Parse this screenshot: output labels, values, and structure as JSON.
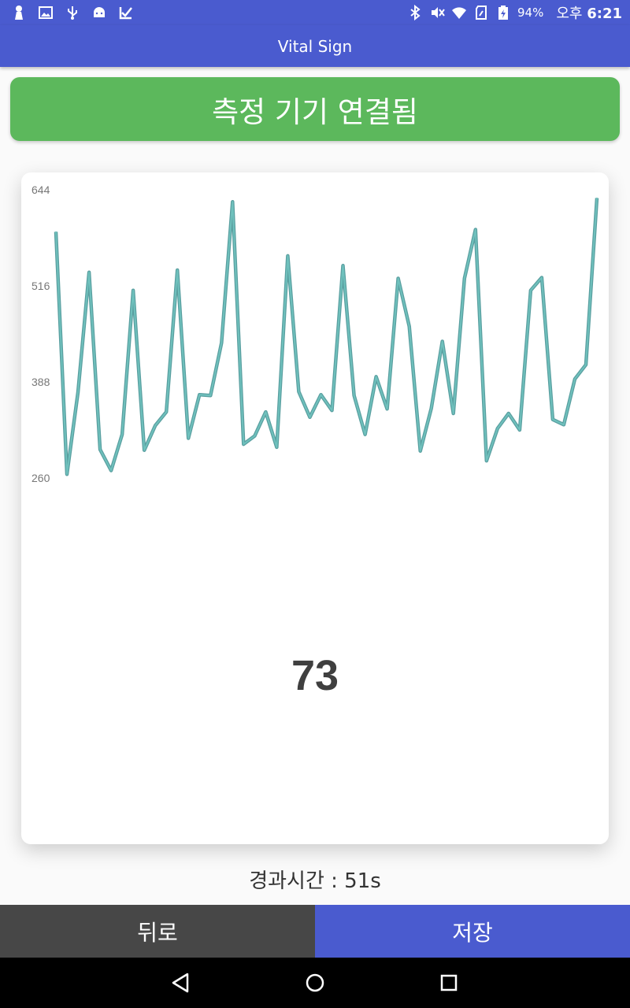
{
  "status_bar": {
    "battery": "94%",
    "time_prefix": "오후",
    "time": "6:21",
    "icons_left": [
      "user-icon",
      "image-icon",
      "usb-icon",
      "android-icon",
      "app-check-icon"
    ],
    "icons_right": [
      "bluetooth-icon",
      "mute-icon",
      "wifi-icon",
      "sim-icon",
      "battery-icon"
    ]
  },
  "app_bar": {
    "title": "Vital Sign"
  },
  "banner": {
    "label": "측정 기기 연결됨",
    "color": "#5cb85c"
  },
  "chart_data": {
    "type": "line",
    "y_ticks": [
      "644",
      "516",
      "388",
      "260"
    ],
    "ylim": [
      260,
      644
    ],
    "line_color": "#6fc1bd",
    "values": [
      588,
      265,
      374,
      534,
      298,
      270,
      318,
      510,
      297,
      330,
      348,
      537,
      313,
      371,
      370,
      440,
      628,
      305,
      316,
      348,
      301,
      556,
      375,
      341,
      371,
      350,
      543,
      370,
      318,
      395,
      352,
      526,
      462,
      296,
      353,
      442,
      346,
      526,
      591,
      283,
      326,
      346,
      324,
      510,
      527,
      338,
      331,
      392,
      411,
      633
    ]
  },
  "reading": {
    "value": "73"
  },
  "elapsed": {
    "label": "경과시간 : 51s"
  },
  "buttons": {
    "back": "뒤로",
    "save": "저장"
  },
  "colors": {
    "primary": "#4a5bcf",
    "success": "#5cb85c",
    "dark_button": "#474747"
  }
}
